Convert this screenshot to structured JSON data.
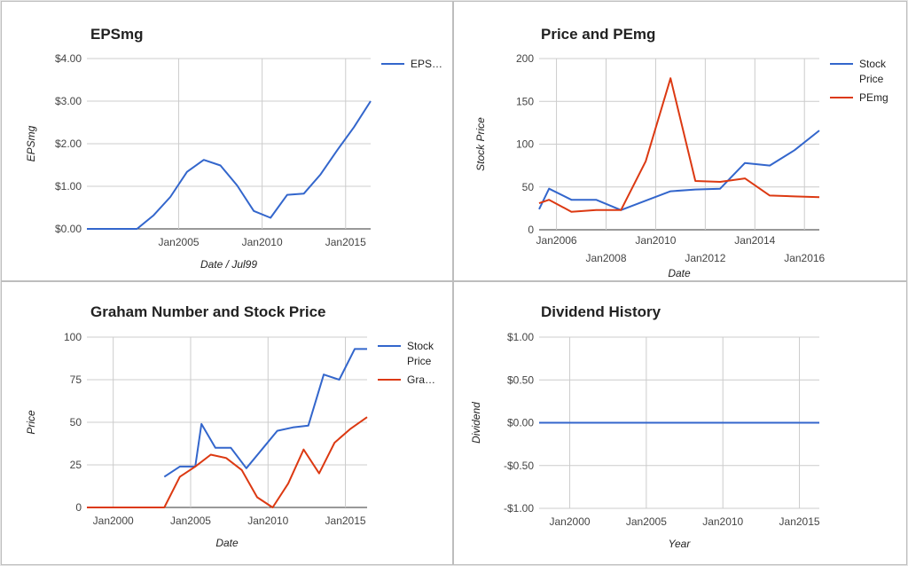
{
  "colors": {
    "blue": "#3366cc",
    "red": "#dc3912"
  },
  "chart_data": [
    {
      "type": "line",
      "title": "EPSmg",
      "xlabel": "Date / Jul99",
      "ylabel": "EPSmg",
      "xlim": [
        1999.5,
        2016.5
      ],
      "ylim": [
        0,
        4
      ],
      "x_ticks": [
        {
          "x": 2005,
          "label": "Jan2005"
        },
        {
          "x": 2010,
          "label": "Jan2010"
        },
        {
          "x": 2015,
          "label": "Jan2015"
        }
      ],
      "y_ticks": [
        {
          "y": 0,
          "label": "$0.00"
        },
        {
          "y": 1,
          "label": "$1.00"
        },
        {
          "y": 2,
          "label": "$2.00"
        },
        {
          "y": 3,
          "label": "$3.00"
        },
        {
          "y": 4,
          "label": "$4.00"
        }
      ],
      "grid": true,
      "legend_position": "right",
      "series": [
        {
          "name": "EPS…",
          "color": "#3366cc",
          "x": [
            1999.5,
            2000.5,
            2001.5,
            2002.5,
            2003.5,
            2004.5,
            2005.5,
            2006.5,
            2007.5,
            2008.5,
            2009.5,
            2010.5,
            2011.5,
            2012.5,
            2013.5,
            2014.5,
            2015.5,
            2016.5
          ],
          "y": [
            0,
            0,
            0,
            0,
            0.32,
            0.75,
            1.34,
            1.62,
            1.49,
            1.02,
            0.42,
            0.26,
            0.8,
            0.83,
            1.28,
            1.85,
            2.39,
            3.0
          ]
        }
      ]
    },
    {
      "type": "line",
      "title": "Price and PEmg",
      "xlabel": "Date",
      "ylabel": "Stock Price",
      "xlim": [
        2005.3,
        2016.6
      ],
      "ylim": [
        0,
        200
      ],
      "x_ticks": [
        {
          "x": 2006,
          "label": "Jan2006",
          "row": 0
        },
        {
          "x": 2008,
          "label": "Jan2008",
          "row": 1
        },
        {
          "x": 2010,
          "label": "Jan2010",
          "row": 0
        },
        {
          "x": 2012,
          "label": "Jan2012",
          "row": 1
        },
        {
          "x": 2014,
          "label": "Jan2014",
          "row": 0
        },
        {
          "x": 2016,
          "label": "Jan2016",
          "row": 1
        }
      ],
      "y_ticks": [
        {
          "y": 0,
          "label": "0"
        },
        {
          "y": 50,
          "label": "50"
        },
        {
          "y": 100,
          "label": "100"
        },
        {
          "y": 150,
          "label": "150"
        },
        {
          "y": 200,
          "label": "200"
        }
      ],
      "grid": true,
      "legend_position": "right",
      "series": [
        {
          "name": "Stock Price",
          "color": "#3366cc",
          "x": [
            2005.3,
            2005.7,
            2006.6,
            2007.6,
            2008.6,
            2009.6,
            2010.6,
            2011.6,
            2012.6,
            2013.6,
            2014.6,
            2015.6,
            2016.6
          ],
          "y": [
            24,
            48,
            35,
            35,
            23,
            34,
            45,
            47,
            48,
            78,
            75,
            93,
            116
          ]
        },
        {
          "name": "PEmg",
          "color": "#dc3912",
          "x": [
            2005.3,
            2005.7,
            2006.6,
            2007.6,
            2008.6,
            2009.6,
            2010.6,
            2011.6,
            2012.6,
            2013.6,
            2014.6,
            2015.6,
            2016.6
          ],
          "y": [
            31,
            35,
            21,
            23,
            23,
            80,
            177,
            57,
            56,
            60,
            40,
            39,
            38
          ]
        }
      ]
    },
    {
      "type": "line",
      "title": "Graham Number and Stock Price",
      "xlabel": "Date",
      "ylabel": "Price",
      "xlim": [
        1998.3,
        2016.4
      ],
      "ylim": [
        0,
        100
      ],
      "x_ticks": [
        {
          "x": 2000,
          "label": "Jan2000"
        },
        {
          "x": 2005,
          "label": "Jan2005"
        },
        {
          "x": 2010,
          "label": "Jan2010"
        },
        {
          "x": 2015,
          "label": "Jan2015"
        }
      ],
      "y_ticks": [
        {
          "y": 0,
          "label": "0"
        },
        {
          "y": 25,
          "label": "25"
        },
        {
          "y": 50,
          "label": "50"
        },
        {
          "y": 75,
          "label": "75"
        },
        {
          "y": 100,
          "label": "100"
        }
      ],
      "grid": true,
      "legend_position": "right",
      "series": [
        {
          "name": "Stock Price",
          "color": "#3366cc",
          "x": [
            2003.3,
            2004.3,
            2005.3,
            2005.7,
            2006.6,
            2007.6,
            2008.6,
            2009.6,
            2010.6,
            2011.6,
            2012.6,
            2013.6,
            2014.6,
            2015.6,
            2016.4
          ],
          "y": [
            18,
            24,
            24,
            49,
            35,
            35,
            23,
            34,
            45,
            47,
            48,
            78,
            75,
            93,
            93
          ]
        },
        {
          "name": "Gra…",
          "color": "#dc3912",
          "x": [
            1998.3,
            1999.3,
            2000.3,
            2001.3,
            2002.3,
            2003.3,
            2004.3,
            2005.3,
            2006.3,
            2007.3,
            2008.3,
            2009.3,
            2010.3,
            2011.3,
            2012.3,
            2013.3,
            2014.3,
            2015.3,
            2016.4
          ],
          "y": [
            0,
            0,
            0,
            0,
            0,
            0,
            18,
            24,
            31,
            29,
            22,
            6,
            0,
            14,
            34,
            20,
            38,
            46,
            53
          ]
        }
      ]
    },
    {
      "type": "line",
      "title": "Dividend History",
      "xlabel": "Year",
      "ylabel": "Dividend",
      "xlim": [
        1998.0,
        2016.3
      ],
      "ylim": [
        -1,
        1
      ],
      "x_ticks": [
        {
          "x": 2000,
          "label": "Jan2000"
        },
        {
          "x": 2005,
          "label": "Jan2005"
        },
        {
          "x": 2010,
          "label": "Jan2010"
        },
        {
          "x": 2015,
          "label": "Jan2015"
        }
      ],
      "y_ticks": [
        {
          "y": -1,
          "label": "-$1.00"
        },
        {
          "y": -0.5,
          "label": "-$0.50"
        },
        {
          "y": 0,
          "label": "$0.00"
        },
        {
          "y": 0.5,
          "label": "$0.50"
        },
        {
          "y": 1,
          "label": "$1.00"
        }
      ],
      "grid": true,
      "legend_position": "none",
      "series": [
        {
          "color": "#3366cc",
          "x": [
            1998.0,
            2016.3
          ],
          "y": [
            0,
            0
          ]
        }
      ]
    }
  ]
}
